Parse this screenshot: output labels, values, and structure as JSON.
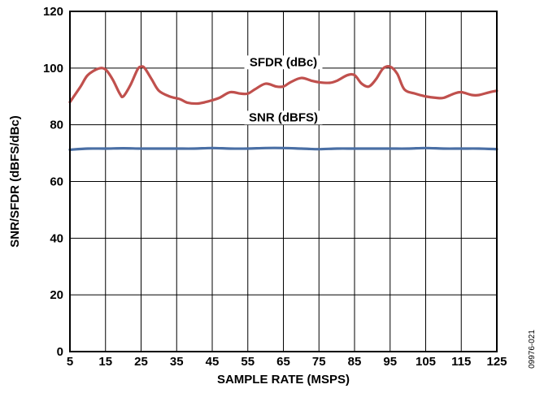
{
  "chart_data": {
    "type": "line",
    "xlabel": "SAMPLE RATE (MSPS)",
    "ylabel": "SNR/SFDR (dBFS/dBc)",
    "xlim": [
      5,
      125
    ],
    "ylim": [
      0,
      120
    ],
    "xticks": [
      5,
      15,
      25,
      35,
      45,
      55,
      65,
      75,
      85,
      95,
      105,
      115,
      125
    ],
    "yticks": [
      0,
      20,
      40,
      60,
      80,
      100,
      120
    ],
    "grid": true,
    "figure_id": "09976-021",
    "series": [
      {
        "name": "SFDR (dBc)",
        "color": "#c0504d",
        "label_at": [
          65,
          101
        ],
        "points": [
          [
            5,
            88
          ],
          [
            8,
            93.5
          ],
          [
            10,
            97.5
          ],
          [
            13,
            99.8
          ],
          [
            15,
            99.5
          ],
          [
            17,
            96
          ],
          [
            19,
            91
          ],
          [
            20,
            90
          ],
          [
            22,
            94
          ],
          [
            24,
            99.5
          ],
          [
            25,
            100.5
          ],
          [
            26,
            100
          ],
          [
            28,
            96
          ],
          [
            30,
            92
          ],
          [
            33,
            90
          ],
          [
            36,
            89
          ],
          [
            38,
            87.8
          ],
          [
            41,
            87.5
          ],
          [
            44,
            88.3
          ],
          [
            47,
            89.5
          ],
          [
            50,
            91.5
          ],
          [
            53,
            91
          ],
          [
            55,
            91
          ],
          [
            57,
            92.5
          ],
          [
            60,
            94.5
          ],
          [
            63,
            93.5
          ],
          [
            65,
            93.5
          ],
          [
            67,
            95
          ],
          [
            70,
            96.5
          ],
          [
            73,
            95.5
          ],
          [
            75,
            95
          ],
          [
            78,
            94.8
          ],
          [
            80,
            95.5
          ],
          [
            83,
            97.5
          ],
          [
            85,
            97.5
          ],
          [
            87,
            94.5
          ],
          [
            89,
            93.5
          ],
          [
            91,
            96
          ],
          [
            93,
            99.8
          ],
          [
            95,
            100.5
          ],
          [
            97,
            98
          ],
          [
            99,
            92.5
          ],
          [
            102,
            91
          ],
          [
            105,
            90
          ],
          [
            108,
            89.5
          ],
          [
            110,
            89.5
          ],
          [
            113,
            91
          ],
          [
            115,
            91.5
          ],
          [
            118,
            90.5
          ],
          [
            120,
            90.5
          ],
          [
            123,
            91.5
          ],
          [
            125,
            92
          ]
        ]
      },
      {
        "name": "SNR (dBFS)",
        "color": "#4a6fa5",
        "label_at": [
          65,
          81.5
        ],
        "points": [
          [
            5,
            71.2
          ],
          [
            10,
            71.6
          ],
          [
            15,
            71.6
          ],
          [
            20,
            71.7
          ],
          [
            25,
            71.6
          ],
          [
            30,
            71.6
          ],
          [
            35,
            71.6
          ],
          [
            40,
            71.6
          ],
          [
            45,
            71.8
          ],
          [
            50,
            71.6
          ],
          [
            55,
            71.6
          ],
          [
            60,
            71.8
          ],
          [
            65,
            71.8
          ],
          [
            70,
            71.6
          ],
          [
            75,
            71.4
          ],
          [
            80,
            71.6
          ],
          [
            85,
            71.6
          ],
          [
            90,
            71.6
          ],
          [
            95,
            71.6
          ],
          [
            100,
            71.6
          ],
          [
            105,
            71.8
          ],
          [
            110,
            71.6
          ],
          [
            115,
            71.6
          ],
          [
            120,
            71.6
          ],
          [
            125,
            71.4
          ]
        ]
      }
    ]
  }
}
